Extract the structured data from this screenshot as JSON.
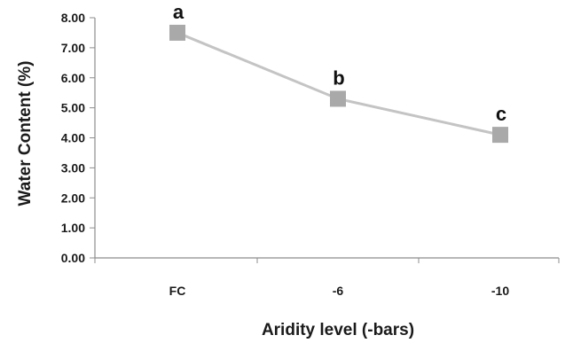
{
  "chart_data": {
    "type": "line",
    "categories": [
      "FC",
      "-6",
      "-10"
    ],
    "values": [
      7.5,
      5.3,
      4.1
    ],
    "point_labels": [
      "a",
      "b",
      "c"
    ],
    "xlabel": "Aridity level (-bars)",
    "ylabel": "Water Content (%)",
    "ylim": [
      0,
      8
    ],
    "yticks": [
      "0.00",
      "1.00",
      "2.00",
      "3.00",
      "4.00",
      "5.00",
      "6.00",
      "7.00",
      "8.00"
    ],
    "grid": false,
    "legend": "none",
    "colors": {
      "line": "#c4c4c4",
      "marker": "#a9a9a9",
      "axis": "#8c8c8c",
      "text": "#1a1a1a"
    }
  }
}
